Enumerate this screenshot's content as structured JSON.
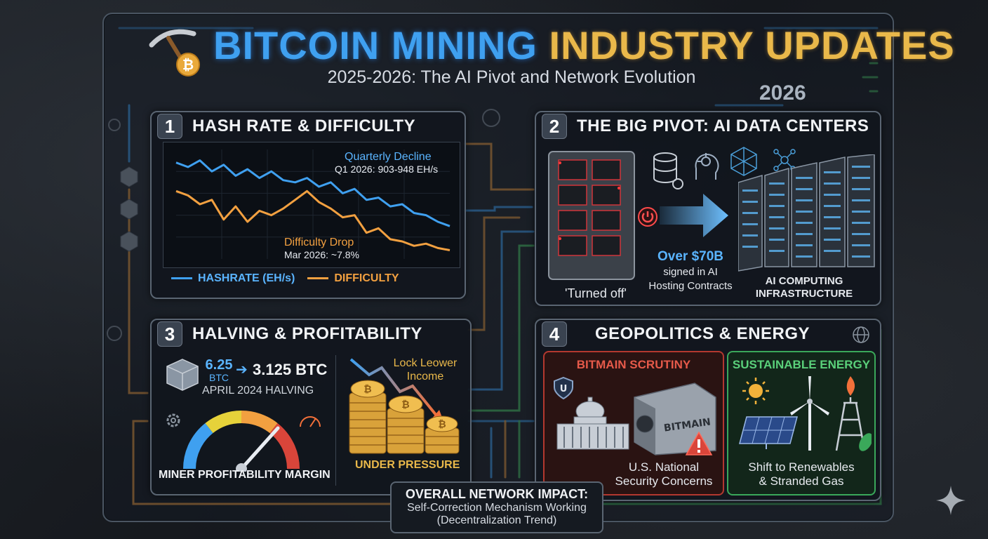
{
  "header": {
    "title_part1": "BITCOIN MINING ",
    "title_part2": "INDUSTRY UPDATES",
    "subtitle": "2025-2026: The AI Pivot and Network Evolution",
    "year": "2026"
  },
  "panel1": {
    "number": "1",
    "title": "HASH RATE & DIFFICULTY",
    "annotation1_title": "Quarterly Decline",
    "annotation1_text": "Q1 2026: 903-948 EH/s",
    "annotation2_title": "Difficulty Drop",
    "annotation2_text": "Mar 2026: ~7.8%",
    "legend_hashrate": "HASHRATE (EH/s)",
    "legend_difficulty": "DIFFICULTY"
  },
  "chart_data": {
    "type": "line",
    "series": [
      {
        "name": "HASHRATE (EH/s)",
        "color": "#3fa0f0",
        "values": [
          88,
          84,
          90,
          80,
          86,
          76,
          82,
          74,
          80,
          72,
          70,
          74,
          66,
          70,
          60,
          64,
          54,
          56,
          48,
          50,
          42,
          40,
          34,
          30
        ]
      },
      {
        "name": "DIFFICULTY",
        "color": "#f2a040",
        "values": [
          62,
          58,
          50,
          54,
          36,
          48,
          34,
          44,
          40,
          46,
          54,
          62,
          52,
          46,
          38,
          40,
          24,
          28,
          18,
          16,
          12,
          14,
          10,
          8
        ]
      }
    ],
    "ylim": [
      0,
      100
    ]
  },
  "panel2": {
    "number": "2",
    "title": "THE BIG PIVOT: AI DATA CENTERS",
    "turned_off": "'Turned off'",
    "amount": "Over $70B",
    "amount_text_1": "signed in AI",
    "amount_text_2": "Hosting Contracts",
    "infra_1": "AI COMPUTING",
    "infra_2": "INFRASTRUCTURE"
  },
  "panel3": {
    "number": "3",
    "title": "HALVING & PROFITABILITY",
    "reward_old": "6.25",
    "reward_old_unit": "BTC",
    "reward_new": "3.125 BTC",
    "halving_label": "APRIL 2024 HALVING",
    "gauge_label": "MINER PROFITABILITY MARGIN",
    "income_label_1": "Lock Leower",
    "income_label_2": "Income",
    "pressure_label": "UNDER PRESSURE"
  },
  "panel4": {
    "number": "4",
    "title": "GEOPOLITICS & ENERGY",
    "left_title": "BITMAIN SCRUTINY",
    "left_brand": "BITMAIN",
    "left_text_1": "U.S. National",
    "left_text_2": "Security Concerns",
    "right_title": "SUSTAINABLE ENERGY",
    "right_text_1": "Shift to Renewables",
    "right_text_2": "& Stranded Gas"
  },
  "impact": {
    "title": "OVERALL NETWORK IMPACT:",
    "line1": "Self-Correction Mechanism Working",
    "line2": "(Decentralization Trend)"
  },
  "colors": {
    "accent_blue": "#3fa0f0",
    "accent_gold": "#e9b84a",
    "accent_orange": "#f2a040",
    "accent_green": "#4ccf6a",
    "accent_red": "#d9453a"
  }
}
